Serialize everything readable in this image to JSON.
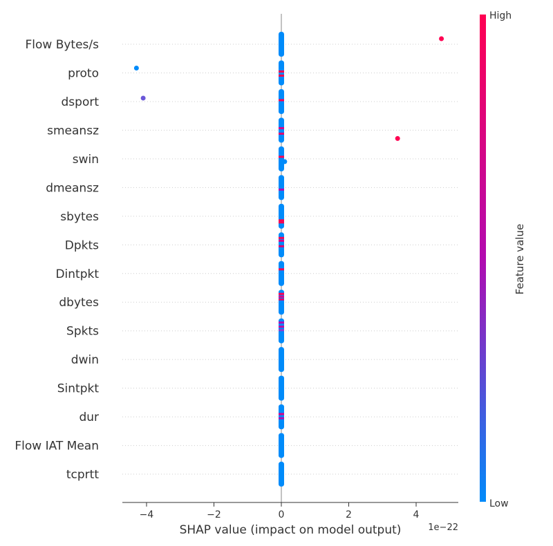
{
  "chart_data": {
    "type": "scatter",
    "subtype": "shap-beeswarm",
    "xlabel": "SHAP value (impact on model output)",
    "x_scale_label": "1e−22",
    "xlim": [
      -4.7,
      5.2
    ],
    "xticks": [
      {
        "value": -4,
        "label": "−4"
      },
      {
        "value": -2,
        "label": "−2"
      },
      {
        "value": 0,
        "label": "0"
      },
      {
        "value": 2,
        "label": "2"
      },
      {
        "value": 4,
        "label": "4"
      }
    ],
    "colorbar": {
      "label": "Feature value",
      "high_label": "High",
      "low_label": "Low",
      "high_color": "#ff0052",
      "mid_color": "#b20bb0",
      "low_color": "#008bfa"
    },
    "features": [
      {
        "name": "Flow Bytes/s",
        "outliers": [
          {
            "x": 4.75,
            "color": "#ff0052",
            "dy": -8
          }
        ],
        "accents": []
      },
      {
        "name": "proto",
        "outliers": [
          {
            "x": -4.3,
            "color": "#008bfa",
            "dy": -7
          }
        ],
        "accents": [
          {
            "dy": -2,
            "color": "#ff0052"
          },
          {
            "dy": 4,
            "color": "#ff0052"
          }
        ]
      },
      {
        "name": "dsport",
        "outliers": [
          {
            "x": -4.1,
            "color": "#6a57d8",
            "dy": -5
          }
        ],
        "accents": [
          {
            "dy": -2,
            "color": "#ff0052"
          }
        ]
      },
      {
        "name": "smeansz",
        "outliers": [
          {
            "x": 3.45,
            "color": "#ff0052",
            "dy": 12
          }
        ],
        "accents": [
          {
            "dy": -3,
            "color": "#d9008a"
          },
          {
            "dy": 5,
            "color": "#e00070"
          }
        ]
      },
      {
        "name": "swin",
        "outliers": [
          {
            "x": 0.1,
            "color": "#008bfa",
            "dy": 4
          }
        ],
        "accents": [
          {
            "dy": -3,
            "color": "#ff0052"
          }
        ]
      },
      {
        "name": "dmeansz",
        "outliers": [],
        "accents": [
          {
            "dy": 3,
            "color": "#b20bb0"
          }
        ]
      },
      {
        "name": "sbytes",
        "outliers": [],
        "accents": [
          {
            "dy": 6,
            "color": "#ff0052"
          },
          {
            "dy": 9,
            "color": "#ff0052"
          }
        ]
      },
      {
        "name": "Dpkts",
        "outliers": [],
        "accents": [
          {
            "dy": -10,
            "color": "#ff0052"
          },
          {
            "dy": -6,
            "color": "#d9008a"
          },
          {
            "dy": 2,
            "color": "#e00070"
          }
        ]
      },
      {
        "name": "Dintpkt",
        "outliers": [],
        "accents": [
          {
            "dy": -6,
            "color": "#ff0052"
          }
        ]
      },
      {
        "name": "dbytes",
        "outliers": [],
        "accents": [
          {
            "dy": -12,
            "color": "#ff0052"
          },
          {
            "dy": -8,
            "color": "#d9008a"
          },
          {
            "dy": -4,
            "color": "#e00070"
          }
        ]
      },
      {
        "name": "Spkts",
        "outliers": [],
        "accents": [
          {
            "dy": -12,
            "color": "#b20bb0"
          },
          {
            "dy": -6,
            "color": "#c00aa0"
          },
          {
            "dy": -1,
            "color": "#8a3fd0"
          }
        ]
      },
      {
        "name": "dwin",
        "outliers": [],
        "accents": []
      },
      {
        "name": "Sintpkt",
        "outliers": [],
        "accents": []
      },
      {
        "name": "dur",
        "outliers": [],
        "accents": [
          {
            "dy": -4,
            "color": "#d9008a"
          },
          {
            "dy": 2,
            "color": "#b20bb0"
          }
        ]
      },
      {
        "name": "Flow IAT Mean",
        "outliers": [],
        "accents": []
      },
      {
        "name": "tcprtt",
        "outliers": [],
        "accents": []
      }
    ]
  }
}
